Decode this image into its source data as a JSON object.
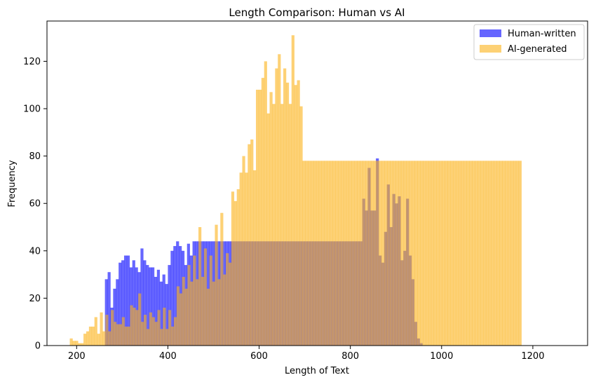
{
  "chart_data": {
    "type": "bar",
    "title": "Length Comparison: Human vs AI",
    "xlabel": "Length of Text",
    "ylabel": "Frequency",
    "xlim": [
      135,
      1320
    ],
    "ylim": [
      0,
      137
    ],
    "x_ticks": [
      200,
      400,
      600,
      800,
      1000,
      1200
    ],
    "y_ticks": [
      0,
      20,
      40,
      60,
      80,
      100,
      120
    ],
    "grid": false,
    "legend_position": "top-right",
    "bin_width": 6.0,
    "series": [
      {
        "name": "Human-written",
        "color": "#0000ff",
        "opacity": 0.6,
        "bin_start": 262,
        "values": [
          28,
          31,
          16,
          24,
          28,
          35,
          36,
          38,
          38,
          33,
          36,
          33,
          31,
          41,
          36,
          34,
          33,
          33,
          29,
          32,
          27,
          30,
          26,
          34,
          40,
          42,
          44,
          42,
          40,
          34,
          43,
          38,
          44,
          44,
          44,
          44,
          44,
          44,
          44,
          44,
          44,
          44,
          44,
          44,
          44,
          44,
          44,
          44,
          44,
          44,
          44,
          44,
          44,
          44,
          44,
          44,
          44,
          44,
          44,
          44,
          44,
          44,
          44,
          44,
          44,
          44,
          44,
          44,
          44,
          44,
          44,
          44,
          44,
          44,
          44,
          44,
          44,
          44,
          44,
          44,
          44,
          44,
          44,
          44,
          44,
          44,
          44,
          44,
          44,
          44,
          44,
          44,
          44,
          44,
          62,
          57,
          75,
          57,
          57,
          79,
          38,
          35,
          48,
          68,
          50,
          64,
          60,
          63,
          36,
          40,
          62,
          38,
          28,
          10,
          3,
          1
        ]
      },
      {
        "name": "AI-generated",
        "color": "#fbb319",
        "opacity": 0.6,
        "bin_start": 185,
        "values": [
          3,
          2,
          2,
          1,
          1,
          5,
          6,
          8,
          8,
          12,
          5,
          14,
          6,
          13,
          6,
          15,
          10,
          9,
          9,
          12,
          8,
          8,
          17,
          16,
          15,
          22,
          10,
          13,
          7,
          14,
          12,
          10,
          15,
          7,
          16,
          7,
          15,
          8,
          12,
          25,
          22,
          29,
          24,
          34,
          27,
          38,
          28,
          50,
          29,
          41,
          24,
          38,
          27,
          51,
          28,
          56,
          30,
          39,
          35,
          65,
          61,
          66,
          73,
          80,
          73,
          85,
          87,
          74,
          108,
          108,
          113,
          120,
          98,
          107,
          102,
          117,
          123,
          102,
          117,
          111,
          102,
          131,
          110,
          112,
          101,
          78,
          78,
          78,
          78,
          78,
          78,
          78,
          78,
          78,
          78,
          78,
          78,
          78,
          78,
          78,
          78,
          78,
          78,
          78,
          78,
          78,
          78,
          78,
          78,
          78,
          78,
          78,
          78,
          78,
          78,
          78,
          78,
          78,
          78,
          78,
          78,
          78,
          78,
          78,
          78,
          78,
          78,
          78,
          78,
          78,
          78,
          78,
          78,
          78,
          78,
          78,
          78,
          78,
          78,
          78,
          78,
          78,
          78,
          78,
          78,
          78,
          78,
          78,
          78,
          78,
          78,
          78,
          78,
          78,
          78,
          78,
          78,
          78,
          78,
          78,
          78,
          78,
          78,
          78,
          78
        ]
      }
    ]
  }
}
